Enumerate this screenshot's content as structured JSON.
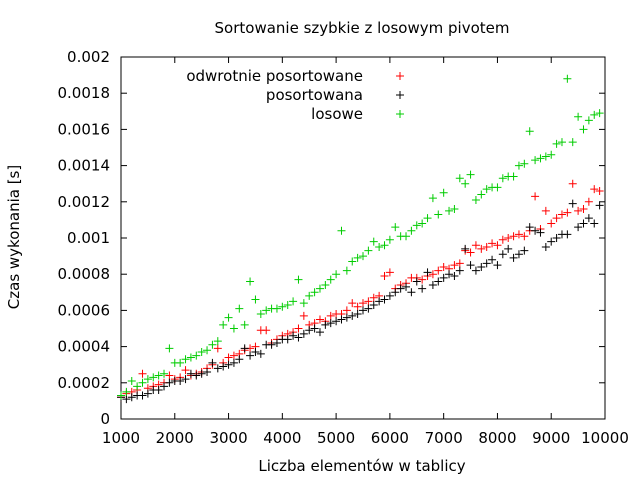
{
  "chart_data": {
    "type": "scatter",
    "title": "Sortowanie szybkie z losowym pivotem",
    "xlabel": "Liczba elementów w tablicy",
    "ylabel": "Czas wykonania [s]",
    "xlim": [
      1000,
      10000
    ],
    "ylim": [
      0,
      0.002
    ],
    "x_ticks": [
      "1000",
      "2000",
      "3000",
      "4000",
      "5000",
      "6000",
      "7000",
      "8000",
      "9000",
      "10000"
    ],
    "y_ticks": [
      "0",
      "0.0002",
      "0.0004",
      "0.0006",
      "0.0008",
      "0.001",
      "0.0012",
      "0.0014",
      "0.0016",
      "0.0018",
      "0.002"
    ],
    "grid": false,
    "legend_position": "top-left",
    "marker": "+",
    "series": [
      {
        "name": "odwrotnie posortowane",
        "color": "#ff0000",
        "points": [
          [
            1000,
            0.00012
          ],
          [
            1100,
            0.00014
          ],
          [
            1200,
            0.00015
          ],
          [
            1300,
            0.00016
          ],
          [
            1400,
            0.00025
          ],
          [
            1500,
            0.00017
          ],
          [
            1600,
            0.00018
          ],
          [
            1700,
            0.00019
          ],
          [
            1800,
            0.0002
          ],
          [
            1900,
            0.00024
          ],
          [
            2000,
            0.00022
          ],
          [
            2100,
            0.00023
          ],
          [
            2200,
            0.00027
          ],
          [
            2300,
            0.00024
          ],
          [
            2400,
            0.00025
          ],
          [
            2500,
            0.00026
          ],
          [
            2600,
            0.00028
          ],
          [
            2700,
            0.0003
          ],
          [
            2800,
            0.00039
          ],
          [
            2900,
            0.00031
          ],
          [
            3000,
            0.00034
          ],
          [
            3100,
            0.00035
          ],
          [
            3200,
            0.00036
          ],
          [
            3300,
            0.00038
          ],
          [
            3400,
            0.00039
          ],
          [
            3500,
            0.0004
          ],
          [
            3600,
            0.00049
          ],
          [
            3700,
            0.00049
          ],
          [
            3800,
            0.00042
          ],
          [
            3900,
            0.00044
          ],
          [
            4000,
            0.00046
          ],
          [
            4100,
            0.00047
          ],
          [
            4200,
            0.00048
          ],
          [
            4300,
            0.0005
          ],
          [
            4400,
            0.00057
          ],
          [
            4500,
            0.00052
          ],
          [
            4600,
            0.00053
          ],
          [
            4700,
            0.00055
          ],
          [
            4800,
            0.00054
          ],
          [
            4900,
            0.00057
          ],
          [
            5000,
            0.00058
          ],
          [
            5100,
            0.00058
          ],
          [
            5200,
            0.0006
          ],
          [
            5300,
            0.00064
          ],
          [
            5400,
            0.00062
          ],
          [
            5500,
            0.00064
          ],
          [
            5600,
            0.00065
          ],
          [
            5700,
            0.00067
          ],
          [
            5800,
            0.00068
          ],
          [
            5900,
            0.00079
          ],
          [
            6000,
            0.00081
          ],
          [
            6100,
            0.00072
          ],
          [
            6200,
            0.00074
          ],
          [
            6300,
            0.00075
          ],
          [
            6400,
            0.00078
          ],
          [
            6500,
            0.00078
          ],
          [
            6600,
            0.00077
          ],
          [
            6700,
            0.00079
          ],
          [
            6800,
            0.0008
          ],
          [
            6900,
            0.00082
          ],
          [
            7000,
            0.00084
          ],
          [
            7100,
            0.00083
          ],
          [
            7200,
            0.00085
          ],
          [
            7300,
            0.00086
          ],
          [
            7400,
            0.00093
          ],
          [
            7500,
            0.00092
          ],
          [
            7600,
            0.00096
          ],
          [
            7700,
            0.00094
          ],
          [
            7800,
            0.00095
          ],
          [
            7900,
            0.00097
          ],
          [
            8000,
            0.00096
          ],
          [
            8100,
            0.00099
          ],
          [
            8200,
            0.001
          ],
          [
            8300,
            0.00101
          ],
          [
            8400,
            0.00102
          ],
          [
            8500,
            0.00101
          ],
          [
            8600,
            0.00104
          ],
          [
            8700,
            0.00123
          ],
          [
            8800,
            0.00105
          ],
          [
            8900,
            0.00115
          ],
          [
            9000,
            0.00108
          ],
          [
            9100,
            0.00111
          ],
          [
            9200,
            0.00113
          ],
          [
            9300,
            0.00114
          ],
          [
            9400,
            0.0013
          ],
          [
            9500,
            0.00115
          ],
          [
            9600,
            0.00116
          ],
          [
            9700,
            0.0012
          ],
          [
            9800,
            0.00127
          ],
          [
            9900,
            0.00126
          ]
        ]
      },
      {
        "name": "posortowana",
        "color": "#000000",
        "points": [
          [
            1000,
            0.00012
          ],
          [
            1100,
            0.00011
          ],
          [
            1200,
            0.00012
          ],
          [
            1300,
            0.00013
          ],
          [
            1400,
            0.00013
          ],
          [
            1500,
            0.00014
          ],
          [
            1600,
            0.00016
          ],
          [
            1700,
            0.00016
          ],
          [
            1800,
            0.00018
          ],
          [
            1900,
            0.0002
          ],
          [
            2000,
            0.00021
          ],
          [
            2100,
            0.00021
          ],
          [
            2200,
            0.00022
          ],
          [
            2300,
            0.00025
          ],
          [
            2400,
            0.00024
          ],
          [
            2500,
            0.00025
          ],
          [
            2600,
            0.00026
          ],
          [
            2700,
            0.00031
          ],
          [
            2800,
            0.00028
          ],
          [
            2900,
            0.00029
          ],
          [
            3000,
            0.0003
          ],
          [
            3100,
            0.00031
          ],
          [
            3200,
            0.00033
          ],
          [
            3300,
            0.00039
          ],
          [
            3400,
            0.00035
          ],
          [
            3500,
            0.00037
          ],
          [
            3600,
            0.00036
          ],
          [
            3700,
            0.00041
          ],
          [
            3800,
            0.00041
          ],
          [
            3900,
            0.00042
          ],
          [
            4000,
            0.00044
          ],
          [
            4100,
            0.00044
          ],
          [
            4200,
            0.00046
          ],
          [
            4300,
            0.00045
          ],
          [
            4400,
            0.00047
          ],
          [
            4500,
            0.00049
          ],
          [
            4600,
            0.0005
          ],
          [
            4700,
            0.00048
          ],
          [
            4800,
            0.00052
          ],
          [
            4900,
            0.00053
          ],
          [
            5000,
            0.00054
          ],
          [
            5100,
            0.00055
          ],
          [
            5200,
            0.00056
          ],
          [
            5300,
            0.00057
          ],
          [
            5400,
            0.00058
          ],
          [
            5500,
            0.0006
          ],
          [
            5600,
            0.00061
          ],
          [
            5700,
            0.00063
          ],
          [
            5800,
            0.00065
          ],
          [
            5900,
            0.00066
          ],
          [
            6000,
            0.00068
          ],
          [
            6100,
            0.0007
          ],
          [
            6200,
            0.00072
          ],
          [
            6300,
            0.00073
          ],
          [
            6400,
            0.0007
          ],
          [
            6500,
            0.00076
          ],
          [
            6600,
            0.00072
          ],
          [
            6700,
            0.00081
          ],
          [
            6800,
            0.00074
          ],
          [
            6900,
            0.00076
          ],
          [
            7000,
            0.00078
          ],
          [
            7100,
            0.0008
          ],
          [
            7200,
            0.00079
          ],
          [
            7300,
            0.00082
          ],
          [
            7400,
            0.00094
          ],
          [
            7500,
            0.00085
          ],
          [
            7600,
            0.00082
          ],
          [
            7700,
            0.00084
          ],
          [
            7800,
            0.00086
          ],
          [
            7900,
            0.00088
          ],
          [
            8000,
            0.00085
          ],
          [
            8100,
            0.00091
          ],
          [
            8200,
            0.00094
          ],
          [
            8300,
            0.00089
          ],
          [
            8400,
            0.00091
          ],
          [
            8500,
            0.00093
          ],
          [
            8600,
            0.00106
          ],
          [
            8700,
            0.00104
          ],
          [
            8800,
            0.00103
          ],
          [
            8900,
            0.00095
          ],
          [
            9000,
            0.00098
          ],
          [
            9100,
            0.001
          ],
          [
            9200,
            0.00102
          ],
          [
            9300,
            0.00102
          ],
          [
            9400,
            0.00119
          ],
          [
            9500,
            0.00106
          ],
          [
            9600,
            0.00108
          ],
          [
            9700,
            0.00111
          ],
          [
            9800,
            0.00108
          ],
          [
            9900,
            0.00118
          ]
        ]
      },
      {
        "name": "losowe",
        "color": "#00cc00",
        "points": [
          [
            1000,
            0.00013
          ],
          [
            1100,
            0.00015
          ],
          [
            1200,
            0.00021
          ],
          [
            1300,
            0.00018
          ],
          [
            1400,
            0.0002
          ],
          [
            1500,
            0.00022
          ],
          [
            1600,
            0.00023
          ],
          [
            1700,
            0.00024
          ],
          [
            1800,
            0.00025
          ],
          [
            1900,
            0.00039
          ],
          [
            2000,
            0.00031
          ],
          [
            2100,
            0.00031
          ],
          [
            2200,
            0.00033
          ],
          [
            2300,
            0.00034
          ],
          [
            2400,
            0.00035
          ],
          [
            2500,
            0.00037
          ],
          [
            2600,
            0.00038
          ],
          [
            2700,
            0.00041
          ],
          [
            2800,
            0.00043
          ],
          [
            2900,
            0.00052
          ],
          [
            3000,
            0.00056
          ],
          [
            3100,
            0.0005
          ],
          [
            3200,
            0.00061
          ],
          [
            3300,
            0.00052
          ],
          [
            3400,
            0.00076
          ],
          [
            3500,
            0.00066
          ],
          [
            3600,
            0.00058
          ],
          [
            3700,
            0.0006
          ],
          [
            3800,
            0.00061
          ],
          [
            3900,
            0.00061
          ],
          [
            4000,
            0.00062
          ],
          [
            4100,
            0.00063
          ],
          [
            4200,
            0.00065
          ],
          [
            4300,
            0.00077
          ],
          [
            4400,
            0.00064
          ],
          [
            4500,
            0.00068
          ],
          [
            4600,
            0.0007
          ],
          [
            4700,
            0.00072
          ],
          [
            4800,
            0.00074
          ],
          [
            4900,
            0.00077
          ],
          [
            5000,
            0.0008
          ],
          [
            5100,
            0.00104
          ],
          [
            5200,
            0.00082
          ],
          [
            5300,
            0.00087
          ],
          [
            5400,
            0.00089
          ],
          [
            5500,
            0.0009
          ],
          [
            5600,
            0.00093
          ],
          [
            5700,
            0.00098
          ],
          [
            5800,
            0.00095
          ],
          [
            5900,
            0.00096
          ],
          [
            6000,
            0.00099
          ],
          [
            6100,
            0.00106
          ],
          [
            6200,
            0.00101
          ],
          [
            6300,
            0.00101
          ],
          [
            6400,
            0.00104
          ],
          [
            6500,
            0.00107
          ],
          [
            6600,
            0.00108
          ],
          [
            6700,
            0.00111
          ],
          [
            6800,
            0.00122
          ],
          [
            6900,
            0.00113
          ],
          [
            7000,
            0.00125
          ],
          [
            7100,
            0.00115
          ],
          [
            7200,
            0.00116
          ],
          [
            7300,
            0.00133
          ],
          [
            7400,
            0.0013
          ],
          [
            7500,
            0.00135
          ],
          [
            7600,
            0.00121
          ],
          [
            7700,
            0.00124
          ],
          [
            7800,
            0.00127
          ],
          [
            7900,
            0.00128
          ],
          [
            8000,
            0.00128
          ],
          [
            8100,
            0.00133
          ],
          [
            8200,
            0.00134
          ],
          [
            8300,
            0.00134
          ],
          [
            8400,
            0.0014
          ],
          [
            8500,
            0.00141
          ],
          [
            8600,
            0.00159
          ],
          [
            8700,
            0.00143
          ],
          [
            8800,
            0.00144
          ],
          [
            8900,
            0.00145
          ],
          [
            9000,
            0.00146
          ],
          [
            9100,
            0.00152
          ],
          [
            9200,
            0.00153
          ],
          [
            9300,
            0.00188
          ],
          [
            9400,
            0.00153
          ],
          [
            9500,
            0.00167
          ],
          [
            9600,
            0.0016
          ],
          [
            9700,
            0.00165
          ],
          [
            9800,
            0.00168
          ],
          [
            9900,
            0.00169
          ]
        ]
      }
    ]
  }
}
